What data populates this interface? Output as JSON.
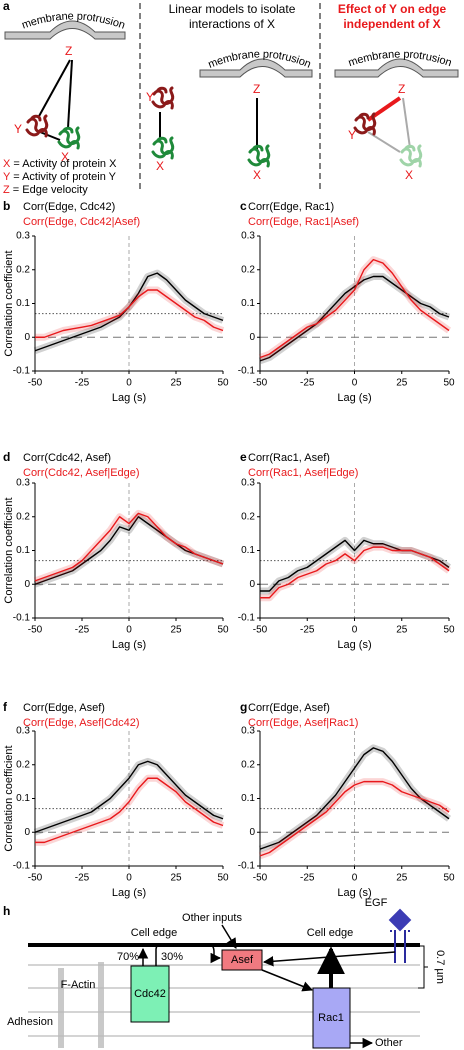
{
  "panel_a": {
    "label": "a",
    "membrane": [
      "membrane protrusion",
      "membrane protrusion",
      "membrane protrusion"
    ],
    "middle_title": [
      "Linear models to isolate",
      "interactions of X"
    ],
    "right_title": [
      "Effect of Y on edge",
      "independent of X"
    ],
    "left_nodes": [
      "Z",
      "Y",
      "X"
    ],
    "middle_nodes": [
      "Y",
      "X",
      "Z",
      "X"
    ],
    "right_nodes": [
      "Z",
      "Y",
      "X"
    ],
    "key": [
      {
        "symbol": "X",
        "text": " = Activity of protein X"
      },
      {
        "symbol": "Y",
        "text": " = Activity of protein Y"
      },
      {
        "symbol": "Z",
        "text": " = Edge velocity"
      }
    ]
  },
  "chart_data": [
    {
      "panel": "b",
      "type": "line",
      "x": [
        -50,
        -45,
        -40,
        -35,
        -30,
        -25,
        -20,
        -15,
        -10,
        -5,
        0,
        5,
        10,
        15,
        20,
        25,
        30,
        35,
        40,
        45,
        50
      ],
      "series": [
        {
          "name": "Corr(Edge, Cdc42)",
          "color": "#000000",
          "values": [
            -0.04,
            -0.03,
            -0.02,
            -0.01,
            0.0,
            0.01,
            0.02,
            0.03,
            0.045,
            0.06,
            0.09,
            0.13,
            0.18,
            0.19,
            0.17,
            0.14,
            0.11,
            0.09,
            0.07,
            0.06,
            0.05
          ]
        },
        {
          "name": "Corr(Edge, Cdc42|Asef)",
          "color": "#e8191c",
          "values": [
            0.0,
            0.0,
            0.01,
            0.02,
            0.025,
            0.03,
            0.035,
            0.045,
            0.055,
            0.065,
            0.09,
            0.12,
            0.14,
            0.14,
            0.12,
            0.1,
            0.08,
            0.06,
            0.05,
            0.03,
            0.02
          ]
        }
      ],
      "xlim": [
        -50,
        50
      ],
      "ylim": [
        -0.1,
        0.3
      ],
      "xticks": [
        -50,
        -25,
        0,
        25,
        50
      ],
      "yticks": [
        -0.1,
        0,
        0.1,
        0.2,
        0.3
      ],
      "threshold": 0.07,
      "x_label": "Lag (s)",
      "y_label": "Correlation coefficient"
    },
    {
      "panel": "c",
      "type": "line",
      "x": [
        -50,
        -45,
        -40,
        -35,
        -30,
        -25,
        -20,
        -15,
        -10,
        -5,
        0,
        5,
        10,
        15,
        20,
        25,
        30,
        35,
        40,
        45,
        50
      ],
      "series": [
        {
          "name": "Corr(Edge, Rac1)",
          "color": "#000000",
          "values": [
            -0.07,
            -0.06,
            -0.04,
            -0.02,
            0.0,
            0.02,
            0.04,
            0.07,
            0.1,
            0.13,
            0.15,
            0.17,
            0.18,
            0.18,
            0.16,
            0.14,
            0.12,
            0.1,
            0.09,
            0.07,
            0.06
          ]
        },
        {
          "name": "Corr(Edge, Rac1|Asef)",
          "color": "#e8191c",
          "values": [
            -0.06,
            -0.05,
            -0.03,
            -0.01,
            0.01,
            0.03,
            0.04,
            0.06,
            0.08,
            0.11,
            0.14,
            0.2,
            0.23,
            0.22,
            0.19,
            0.15,
            0.11,
            0.08,
            0.06,
            0.04,
            0.02
          ]
        }
      ],
      "xlim": [
        -50,
        50
      ],
      "ylim": [
        -0.1,
        0.3
      ],
      "xticks": [
        -50,
        -25,
        0,
        25,
        50
      ],
      "yticks": [
        -0.1,
        0,
        0.1,
        0.2,
        0.3
      ],
      "threshold": 0.07,
      "x_label": "Lag (s)"
    },
    {
      "panel": "d",
      "type": "line",
      "x": [
        -50,
        -45,
        -40,
        -35,
        -30,
        -25,
        -20,
        -15,
        -10,
        -5,
        0,
        5,
        10,
        15,
        20,
        25,
        30,
        35,
        40,
        45,
        50
      ],
      "series": [
        {
          "name": "Corr(Cdc42, Asef)",
          "color": "#000000",
          "values": [
            0.0,
            0.01,
            0.02,
            0.03,
            0.04,
            0.06,
            0.08,
            0.1,
            0.13,
            0.17,
            0.16,
            0.2,
            0.18,
            0.16,
            0.14,
            0.12,
            0.1,
            0.09,
            0.08,
            0.07,
            0.06
          ]
        },
        {
          "name": "Corr(Cdc42, Asef|Edge)",
          "color": "#e8191c",
          "values": [
            0.01,
            0.02,
            0.03,
            0.04,
            0.05,
            0.07,
            0.1,
            0.13,
            0.16,
            0.2,
            0.18,
            0.21,
            0.2,
            0.17,
            0.14,
            0.12,
            0.11,
            0.09,
            0.08,
            0.07,
            0.06
          ]
        }
      ],
      "xlim": [
        -50,
        50
      ],
      "ylim": [
        -0.1,
        0.3
      ],
      "xticks": [
        -50,
        -25,
        0,
        25,
        50
      ],
      "yticks": [
        -0.1,
        0,
        0.1,
        0.2,
        0.3
      ],
      "threshold": 0.07,
      "x_label": "Lag (s)",
      "y_label": "Correlation coefficient"
    },
    {
      "panel": "e",
      "type": "line",
      "x": [
        -50,
        -45,
        -40,
        -35,
        -30,
        -25,
        -20,
        -15,
        -10,
        -5,
        0,
        5,
        10,
        15,
        20,
        25,
        30,
        35,
        40,
        45,
        50
      ],
      "series": [
        {
          "name": "Corr(Rac1, Asef)",
          "color": "#000000",
          "values": [
            -0.02,
            -0.02,
            0.01,
            0.02,
            0.04,
            0.05,
            0.07,
            0.09,
            0.11,
            0.13,
            0.1,
            0.13,
            0.12,
            0.12,
            0.11,
            0.1,
            0.1,
            0.09,
            0.08,
            0.07,
            0.05
          ]
        },
        {
          "name": "Corr(Rac1, Asef|Edge)",
          "color": "#e8191c",
          "values": [
            -0.04,
            -0.04,
            -0.01,
            0.0,
            0.02,
            0.03,
            0.04,
            0.06,
            0.07,
            0.09,
            0.07,
            0.1,
            0.11,
            0.11,
            0.1,
            0.1,
            0.1,
            0.09,
            0.08,
            0.06,
            0.04
          ]
        }
      ],
      "xlim": [
        -50,
        50
      ],
      "ylim": [
        -0.1,
        0.3
      ],
      "xticks": [
        -50,
        -25,
        0,
        25,
        50
      ],
      "yticks": [
        -0.1,
        0,
        0.1,
        0.2,
        0.3
      ],
      "threshold": 0.07,
      "x_label": "Lag (s)"
    },
    {
      "panel": "f",
      "type": "line",
      "x": [
        -50,
        -45,
        -40,
        -35,
        -30,
        -25,
        -20,
        -15,
        -10,
        -5,
        0,
        5,
        10,
        15,
        20,
        25,
        30,
        35,
        40,
        45,
        50
      ],
      "series": [
        {
          "name": "Corr(Edge, Asef)",
          "color": "#000000",
          "values": [
            0.0,
            0.01,
            0.02,
            0.03,
            0.04,
            0.05,
            0.06,
            0.08,
            0.1,
            0.13,
            0.16,
            0.2,
            0.21,
            0.2,
            0.17,
            0.14,
            0.11,
            0.09,
            0.07,
            0.05,
            0.04
          ]
        },
        {
          "name": "Corr(Edge, Asef|Cdc42)",
          "color": "#e8191c",
          "values": [
            -0.03,
            -0.03,
            -0.02,
            -0.01,
            0.0,
            0.01,
            0.02,
            0.03,
            0.04,
            0.06,
            0.09,
            0.13,
            0.16,
            0.16,
            0.14,
            0.12,
            0.09,
            0.07,
            0.05,
            0.03,
            0.02
          ]
        }
      ],
      "xlim": [
        -50,
        50
      ],
      "ylim": [
        -0.1,
        0.3
      ],
      "xticks": [
        -50,
        -25,
        0,
        25,
        50
      ],
      "yticks": [
        -0.1,
        0,
        0.1,
        0.2,
        0.3
      ],
      "threshold": 0.07,
      "x_label": "Lag (s)",
      "y_label": "Correlation coefficient"
    },
    {
      "panel": "g",
      "type": "line",
      "x": [
        -50,
        -45,
        -40,
        -35,
        -30,
        -25,
        -20,
        -15,
        -10,
        -5,
        0,
        5,
        10,
        15,
        20,
        25,
        30,
        35,
        40,
        45,
        50
      ],
      "series": [
        {
          "name": "Corr(Edge, Asef)",
          "color": "#000000",
          "values": [
            -0.05,
            -0.04,
            -0.03,
            -0.01,
            0.01,
            0.03,
            0.05,
            0.08,
            0.11,
            0.15,
            0.19,
            0.23,
            0.25,
            0.24,
            0.21,
            0.17,
            0.13,
            0.1,
            0.08,
            0.06,
            0.04
          ]
        },
        {
          "name": "Corr(Edge, Asef|Rac1)",
          "color": "#e8191c",
          "values": [
            -0.07,
            -0.06,
            -0.04,
            -0.02,
            0.0,
            0.02,
            0.04,
            0.06,
            0.09,
            0.12,
            0.14,
            0.15,
            0.15,
            0.15,
            0.14,
            0.12,
            0.11,
            0.1,
            0.09,
            0.08,
            0.06
          ]
        }
      ],
      "xlim": [
        -50,
        50
      ],
      "ylim": [
        -0.1,
        0.3
      ],
      "xticks": [
        -50,
        -25,
        0,
        25,
        50
      ],
      "yticks": [
        -0.1,
        0,
        0.1,
        0.2,
        0.3
      ],
      "threshold": 0.07,
      "x_label": "Lag (s)"
    }
  ],
  "panel_h": {
    "label": "h",
    "cell_edge": [
      "Cell edge",
      "Cell edge"
    ],
    "other_inputs": "Other inputs",
    "egf": "EGF",
    "pct": [
      "70%",
      "30%"
    ],
    "f_actin": "F-Actin",
    "cdc42": "Cdc42",
    "asef": "Asef",
    "rac1": "Rac1",
    "other": "Other",
    "adhesion": "Adhesion",
    "scale": "0.7 µm"
  }
}
